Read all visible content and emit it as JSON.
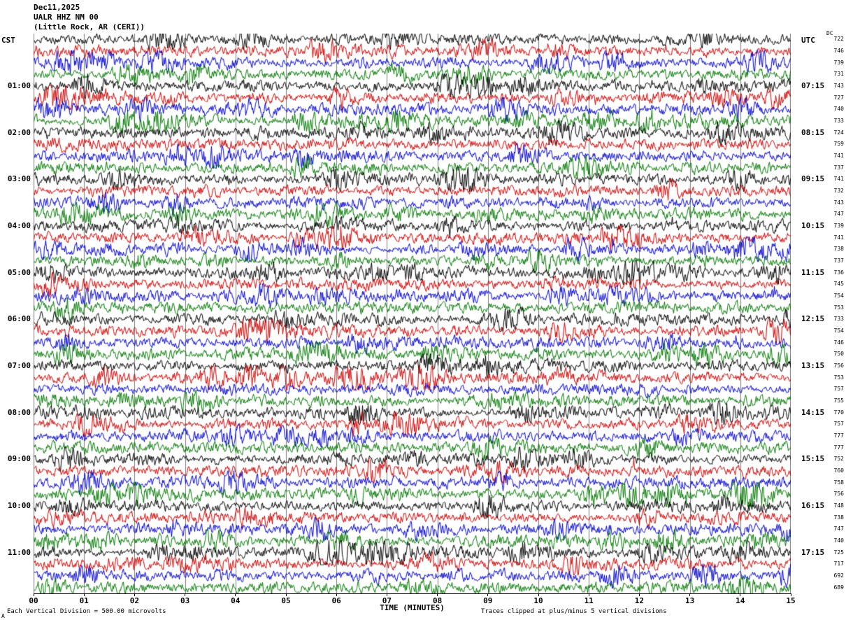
{
  "title": {
    "date": "Dec11,2025",
    "station": "UALR HHZ NM 00",
    "location": "(Little Rock, AR (CERI))"
  },
  "axes": {
    "left_header": "CST",
    "right_header": "UTC",
    "dc_header": "DC",
    "x_label": "TIME (MINUTES)",
    "x_ticks": [
      "00",
      "01",
      "02",
      "03",
      "04",
      "05",
      "06",
      "07",
      "08",
      "09",
      "10",
      "11",
      "12",
      "13",
      "14",
      "15"
    ],
    "footer_left": "Each Vertical Division =  500.00 microvolts",
    "footer_right": "Traces clipped at plus/minus 5 vertical divisions",
    "corner_mark": "A"
  },
  "chart_data": {
    "type": "line",
    "subtype": "helicorder-seismogram",
    "title": "UALR HHZ NM 00 (Little Rock, AR (CERI)) Dec11,2025",
    "date": "Dec11,2025",
    "station": "UALR HHZ NM 00",
    "location": "Little Rock, AR (CERI)",
    "xlabel": "TIME (MINUTES)",
    "x_range_minutes": [
      0,
      15
    ],
    "minutes_per_row": 15,
    "left_time_zone": "CST",
    "right_time_zone": "UTC",
    "vertical_division_microvolts": 500.0,
    "clip_divisions": 5,
    "grid": "vertical-per-minute",
    "row_colors_cycle": [
      "#000000",
      "#cc0000",
      "#0000cc",
      "#007700"
    ],
    "rows": [
      {
        "cst": "",
        "utc": "",
        "dc": 722
      },
      {
        "cst": "",
        "utc": "",
        "dc": 746
      },
      {
        "cst": "",
        "utc": "",
        "dc": 739
      },
      {
        "cst": "",
        "utc": "",
        "dc": 731
      },
      {
        "cst": "01:00",
        "utc": "07:15",
        "dc": 743
      },
      {
        "cst": "",
        "utc": "",
        "dc": 727
      },
      {
        "cst": "",
        "utc": "",
        "dc": 740
      },
      {
        "cst": "",
        "utc": "",
        "dc": 733
      },
      {
        "cst": "02:00",
        "utc": "08:15",
        "dc": 724
      },
      {
        "cst": "",
        "utc": "",
        "dc": 759
      },
      {
        "cst": "",
        "utc": "",
        "dc": 741
      },
      {
        "cst": "",
        "utc": "",
        "dc": 737
      },
      {
        "cst": "03:00",
        "utc": "09:15",
        "dc": 741
      },
      {
        "cst": "",
        "utc": "",
        "dc": 732
      },
      {
        "cst": "",
        "utc": "",
        "dc": 743
      },
      {
        "cst": "",
        "utc": "",
        "dc": 747
      },
      {
        "cst": "04:00",
        "utc": "10:15",
        "dc": 739
      },
      {
        "cst": "",
        "utc": "",
        "dc": 741
      },
      {
        "cst": "",
        "utc": "",
        "dc": 738
      },
      {
        "cst": "",
        "utc": "",
        "dc": 737
      },
      {
        "cst": "05:00",
        "utc": "11:15",
        "dc": 736
      },
      {
        "cst": "",
        "utc": "",
        "dc": 745
      },
      {
        "cst": "",
        "utc": "",
        "dc": 754
      },
      {
        "cst": "",
        "utc": "",
        "dc": 753
      },
      {
        "cst": "06:00",
        "utc": "12:15",
        "dc": 733
      },
      {
        "cst": "",
        "utc": "",
        "dc": 754
      },
      {
        "cst": "",
        "utc": "",
        "dc": 746
      },
      {
        "cst": "",
        "utc": "",
        "dc": 750
      },
      {
        "cst": "07:00",
        "utc": "13:15",
        "dc": 756
      },
      {
        "cst": "",
        "utc": "",
        "dc": 753
      },
      {
        "cst": "",
        "utc": "",
        "dc": 757
      },
      {
        "cst": "",
        "utc": "",
        "dc": 755
      },
      {
        "cst": "08:00",
        "utc": "14:15",
        "dc": 770
      },
      {
        "cst": "",
        "utc": "",
        "dc": 757
      },
      {
        "cst": "",
        "utc": "",
        "dc": 777
      },
      {
        "cst": "",
        "utc": "",
        "dc": 777
      },
      {
        "cst": "09:00",
        "utc": "15:15",
        "dc": 752
      },
      {
        "cst": "",
        "utc": "",
        "dc": 760
      },
      {
        "cst": "",
        "utc": "",
        "dc": 758
      },
      {
        "cst": "",
        "utc": "",
        "dc": 756
      },
      {
        "cst": "10:00",
        "utc": "16:15",
        "dc": 748
      },
      {
        "cst": "",
        "utc": "",
        "dc": 738
      },
      {
        "cst": "",
        "utc": "",
        "dc": 747
      },
      {
        "cst": "",
        "utc": "",
        "dc": 740
      },
      {
        "cst": "11:00",
        "utc": "17:15",
        "dc": 725
      },
      {
        "cst": "",
        "utc": "",
        "dc": 717
      },
      {
        "cst": "",
        "utc": "",
        "dc": 692
      },
      {
        "cst": "",
        "utc": "",
        "dc": 689
      }
    ]
  }
}
